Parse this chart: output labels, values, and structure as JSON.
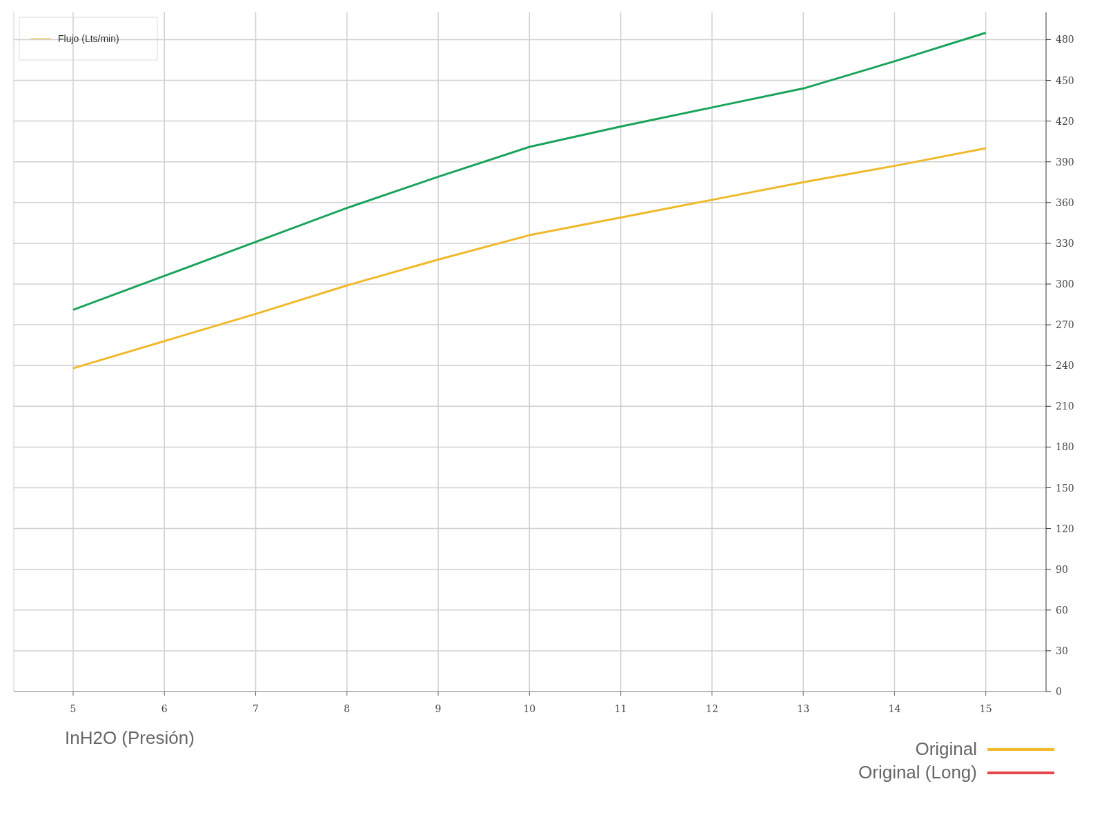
{
  "chart_data": {
    "type": "line",
    "xlabel": "InH2O (Presión)",
    "ylabel": "Flujo (Lts/min)",
    "x": [
      5,
      6,
      7,
      8,
      9,
      10,
      11,
      12,
      13,
      14,
      15
    ],
    "series": [
      {
        "color": "#1aa35a",
        "values": [
          281,
          306,
          331,
          356,
          379,
          401,
          416,
          430,
          444,
          464,
          485
        ]
      },
      {
        "name": "Original",
        "color": "#f0b92a",
        "values": [
          238,
          258,
          278,
          299,
          318,
          336,
          349,
          362,
          375,
          387,
          400
        ]
      },
      {
        "name": "Original (Long)",
        "color": "#e8474a",
        "values": [
          null,
          null,
          null,
          null,
          null,
          null,
          null,
          null,
          null,
          null,
          null
        ]
      }
    ],
    "xlim": [
      4.35,
      15.66
    ],
    "ylim": [
      0,
      500
    ],
    "xticks": [
      5,
      6,
      7,
      8,
      9,
      10,
      11,
      12,
      13,
      14,
      15
    ],
    "yticks": [
      0,
      30,
      60,
      90,
      120,
      150,
      180,
      210,
      240,
      270,
      300,
      330,
      360,
      390,
      420,
      450,
      480
    ],
    "grid": true,
    "legend": "bottom right",
    "marker": "none",
    "line_style": "solid"
  }
}
